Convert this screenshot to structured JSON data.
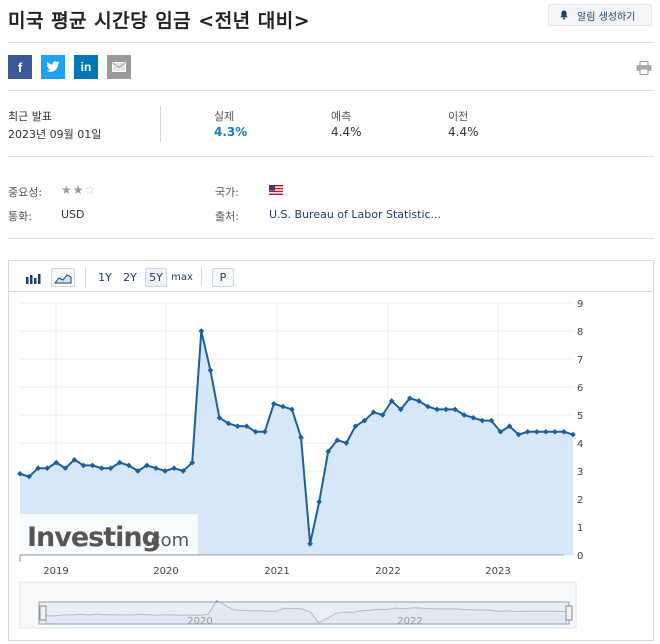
{
  "header": {
    "title": "미국 평균 시간당 임금 <전년 대비>",
    "alert_button": "알림 생성하기"
  },
  "share": {
    "facebook": "f",
    "linkedin": "in"
  },
  "release": {
    "latest_label": "최근 발표",
    "latest_date": "2023년 09월 01일",
    "actual_label": "실제",
    "actual_value": "4.3%",
    "forecast_label": "예측",
    "forecast_value": "4.4%",
    "previous_label": "이전",
    "previous_value": "4.4%"
  },
  "info": {
    "importance_label": "중요성:",
    "importance_stars": 2,
    "country_label": "국가:",
    "currency_label": "통화:",
    "currency_value": "USD",
    "source_label": "출처:",
    "source_value": "U.S. Bureau of Labor Statistic..."
  },
  "toolbar": {
    "ranges": [
      "1Y",
      "2Y",
      "5Y",
      "max"
    ],
    "selected_range": "5Y",
    "p_button": "P"
  },
  "chart_data": {
    "type": "area",
    "y_ticks": [
      "0",
      "1",
      "2",
      "3",
      "4",
      "5",
      "6",
      "7",
      "8",
      "9"
    ],
    "ylim": [
      0,
      9
    ],
    "x_labels": [
      "2019",
      "2020",
      "2021",
      "2022",
      "2023"
    ],
    "navigator_labels": [
      "2020",
      "2022"
    ],
    "watermark": "Investing",
    "watermark_suffix": ".com",
    "line_color": "#1d5f99",
    "fill_color": "#d6e8f7",
    "series": [
      {
        "values": [
          2.9,
          2.8,
          3.1,
          3.1,
          3.3,
          3.1,
          3.4,
          3.2,
          3.2,
          3.1,
          3.1,
          3.3,
          3.2,
          3.0,
          3.2,
          3.1,
          3.0,
          3.1,
          3.0,
          3.3,
          8.0,
          6.6,
          4.9,
          4.7,
          4.6,
          4.6,
          4.4,
          4.4,
          5.4,
          5.3,
          5.2,
          4.2,
          0.4,
          1.9,
          3.7,
          4.1,
          4.0,
          4.6,
          4.8,
          5.1,
          5.0,
          5.5,
          5.2,
          5.6,
          5.5,
          5.3,
          5.2,
          5.2,
          5.2,
          5.0,
          4.9,
          4.8,
          4.8,
          4.4,
          4.6,
          4.3,
          4.4,
          4.4,
          4.4,
          4.4,
          4.4,
          4.3
        ]
      }
    ]
  }
}
